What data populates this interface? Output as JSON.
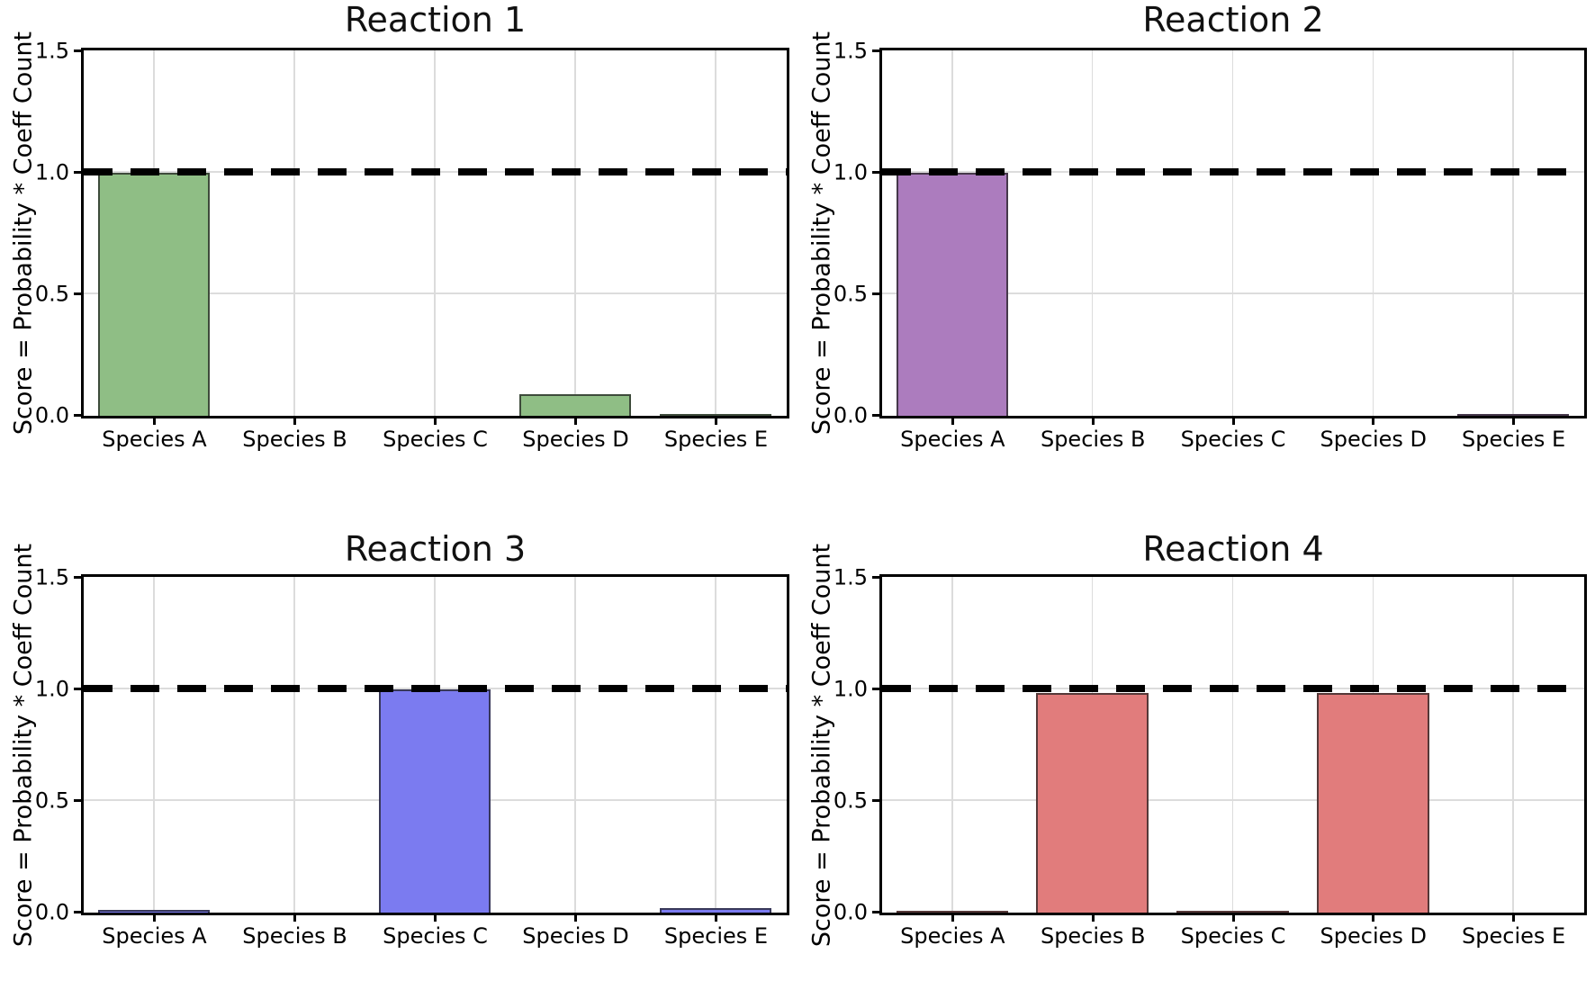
{
  "figure": {
    "background": "#ffffff",
    "ylabel": "Score = Probability * Coeff Count"
  },
  "chart_data": [
    {
      "type": "bar",
      "title": "Reaction 1",
      "categories": [
        "Species A",
        "Species B",
        "Species C",
        "Species D",
        "Species E"
      ],
      "values": [
        1.0,
        0,
        0,
        0.09,
        0.006
      ],
      "bar_color": "#8FBE85",
      "edge_color": "rgba(30,30,30,0.72)",
      "ylabel": "Score = Probability * Coeff Count",
      "xlabel": "",
      "ylim": [
        0,
        1.5
      ],
      "yticks": [
        0,
        0.5,
        1,
        1.5
      ],
      "ytick_labels": [
        "0.0",
        "0.5",
        "1.0",
        "1.5"
      ],
      "threshold": 1.0,
      "threshold_color": "#000000",
      "threshold_style": "dashed",
      "grid": true,
      "legend_position": "none"
    },
    {
      "type": "bar",
      "title": "Reaction 2",
      "categories": [
        "Species A",
        "Species B",
        "Species C",
        "Species D",
        "Species E"
      ],
      "values": [
        1.0,
        0,
        0,
        0,
        0.004
      ],
      "bar_color": "#AC7CBE",
      "edge_color": "rgba(30,30,30,0.72)",
      "ylabel": "Score = Probability * Coeff Count",
      "xlabel": "",
      "ylim": [
        0,
        1.5
      ],
      "yticks": [
        0,
        0.5,
        1,
        1.5
      ],
      "ytick_labels": [
        "0.0",
        "0.5",
        "1.0",
        "1.5"
      ],
      "threshold": 1.0,
      "threshold_color": "#000000",
      "threshold_style": "dashed",
      "grid": true,
      "legend_position": "none"
    },
    {
      "type": "bar",
      "title": "Reaction 3",
      "categories": [
        "Species A",
        "Species B",
        "Species C",
        "Species D",
        "Species E"
      ],
      "values": [
        0.012,
        0,
        1.0,
        0,
        0.02
      ],
      "bar_color": "#7B7BF0",
      "edge_color": "rgba(30,30,30,0.72)",
      "ylabel": "Score = Probability * Coeff Count",
      "xlabel": "",
      "ylim": [
        0,
        1.5
      ],
      "yticks": [
        0,
        0.5,
        1,
        1.5
      ],
      "ytick_labels": [
        "0.0",
        "0.5",
        "1.0",
        "1.5"
      ],
      "threshold": 1.0,
      "threshold_color": "#000000",
      "threshold_style": "dashed",
      "grid": true,
      "legend_position": "none"
    },
    {
      "type": "bar",
      "title": "Reaction 4",
      "categories": [
        "Species A",
        "Species B",
        "Species C",
        "Species D",
        "Species E"
      ],
      "values": [
        0.004,
        0.985,
        0.008,
        0.985,
        0
      ],
      "bar_color": "#E17C7C",
      "edge_color": "rgba(30,30,30,0.72)",
      "ylabel": "Score = Probability * Coeff Count",
      "xlabel": "",
      "ylim": [
        0,
        1.5
      ],
      "yticks": [
        0,
        0.5,
        1,
        1.5
      ],
      "ytick_labels": [
        "0.0",
        "0.5",
        "1.0",
        "1.5"
      ],
      "threshold": 1.0,
      "threshold_color": "#000000",
      "threshold_style": "dashed",
      "grid": true,
      "legend_position": "none"
    }
  ]
}
